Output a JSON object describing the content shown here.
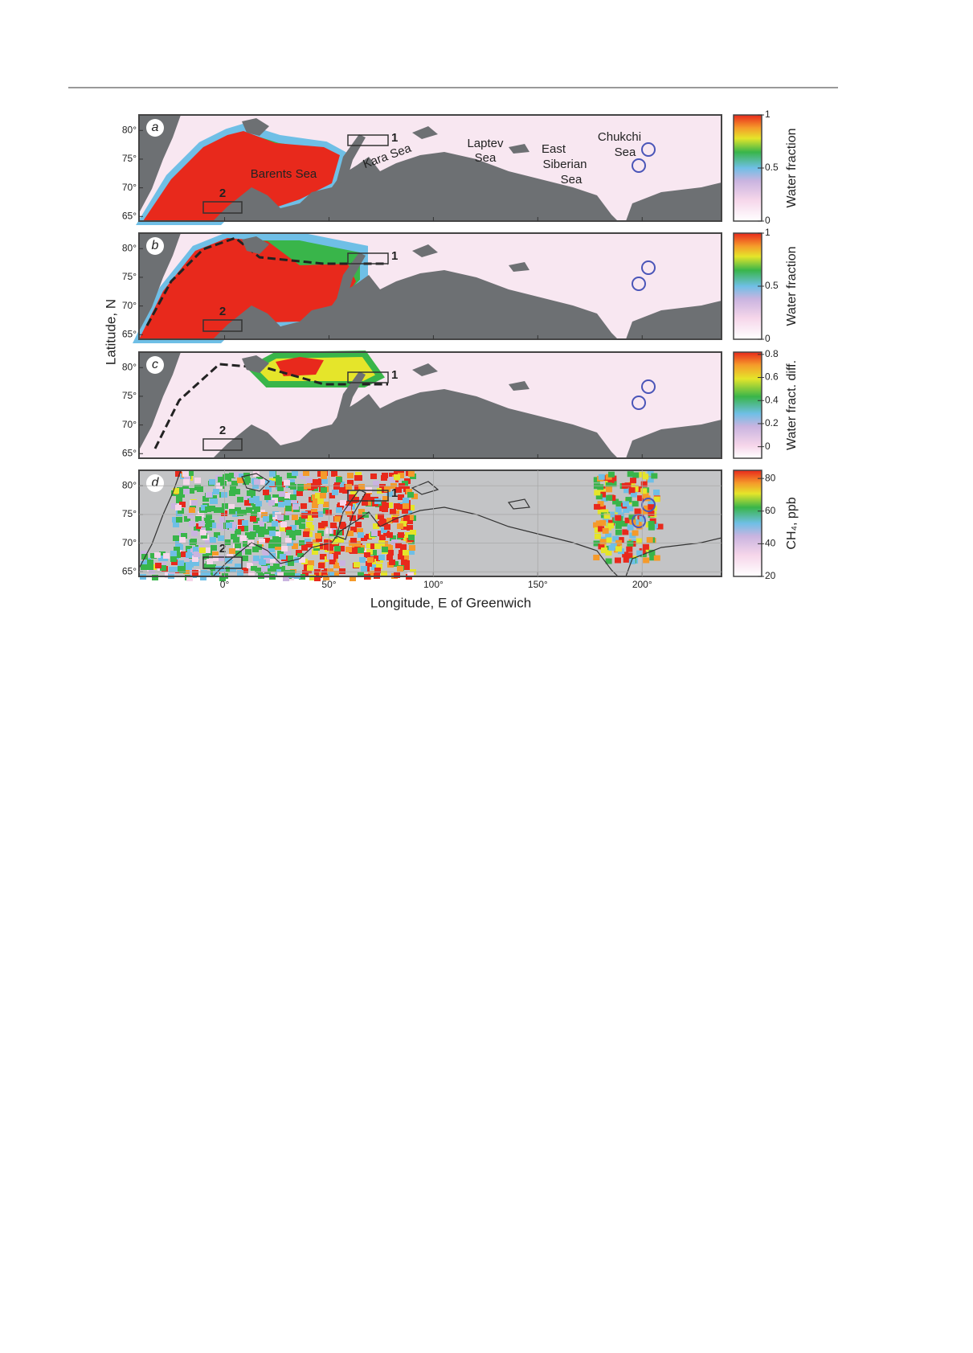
{
  "figure": {
    "xlabel": "Longitude, E of Greenwich",
    "ylabel": "Latitude, N",
    "xlim": [
      -41,
      238
    ],
    "ylim": [
      64.2,
      82.7
    ],
    "xticks": [
      {
        "value": 0,
        "label": "0°"
      },
      {
        "value": 50,
        "label": "50°"
      },
      {
        "value": 100,
        "label": "100°"
      },
      {
        "value": 150,
        "label": "150°"
      },
      {
        "value": 200,
        "label": "200°"
      }
    ],
    "yticks": [
      {
        "value": 65,
        "label": "65°"
      },
      {
        "value": 70,
        "label": "70°"
      },
      {
        "value": 75,
        "label": "75°"
      },
      {
        "value": 80,
        "label": "80°"
      }
    ],
    "box_labels": [
      "1",
      "2"
    ],
    "sea_labels": [
      [
        "Barents Sea"
      ],
      [
        "Kara Sea"
      ],
      [
        "Laptev",
        "Sea"
      ],
      [
        "East",
        "Siberian",
        "Sea"
      ],
      [
        "Chukchi",
        "Sea"
      ]
    ],
    "panels": [
      {
        "letter": "a",
        "grid": false,
        "colorbar": {
          "label": "Water fraction",
          "lim": [
            0,
            1
          ],
          "ticks": [
            0,
            0.5,
            1
          ]
        }
      },
      {
        "letter": "b",
        "grid": false,
        "colorbar": {
          "label": "Water fraction",
          "lim": [
            0,
            1
          ],
          "ticks": [
            0,
            0.5,
            1
          ]
        }
      },
      {
        "letter": "c",
        "grid": false,
        "colorbar": {
          "label": "Water fract. diff.",
          "lim": [
            -0.1,
            0.82
          ],
          "ticks": [
            0,
            0.2,
            0.4,
            0.6,
            0.8
          ]
        }
      },
      {
        "letter": "d",
        "grid": true,
        "colorbar": {
          "label": "CH₄, ppb",
          "lim": [
            20,
            85
          ],
          "ticks": [
            20,
            40,
            60,
            80
          ]
        }
      }
    ]
  }
}
